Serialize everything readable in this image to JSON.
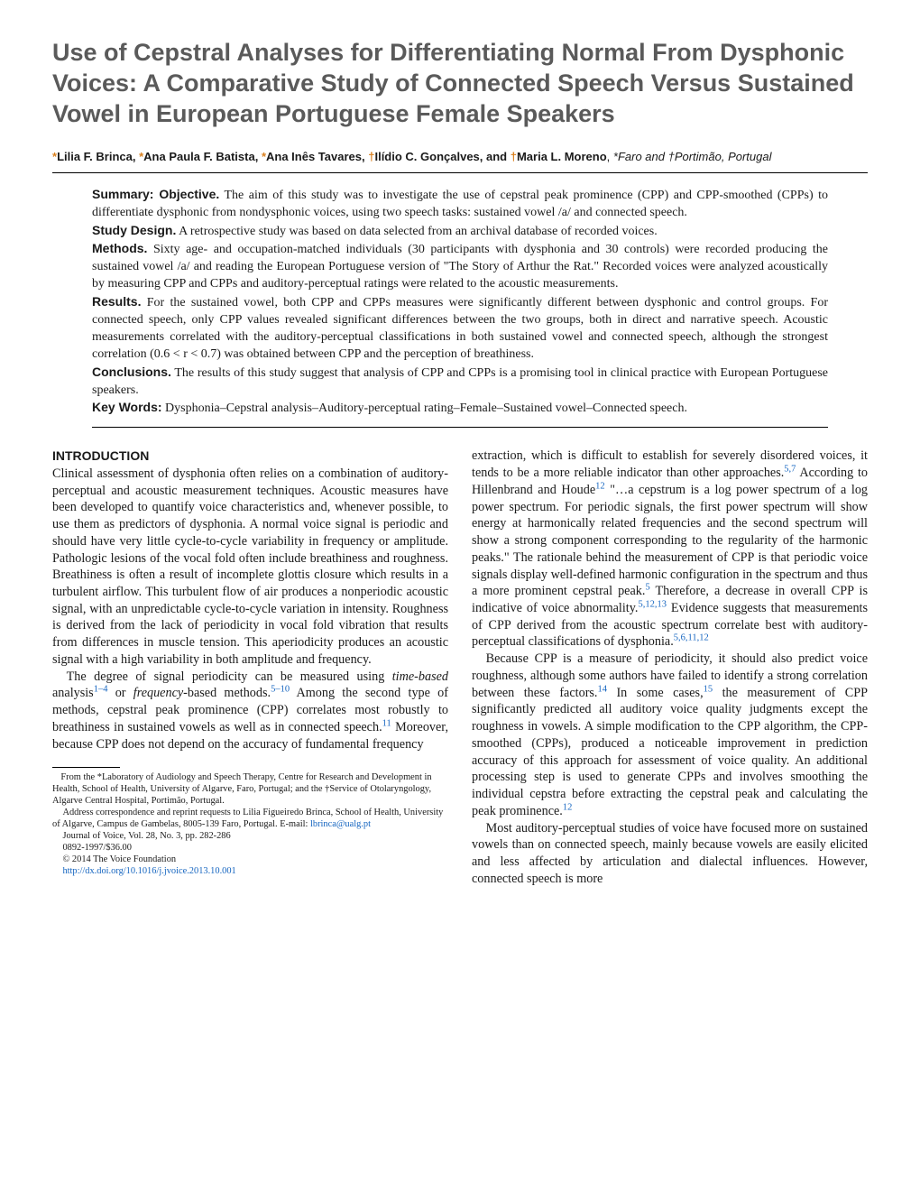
{
  "title": "Use of Cepstral Analyses for Differentiating Normal From Dysphonic Voices: A Comparative Study of Connected Speech Versus Sustained Vowel in European Portuguese Female Speakers",
  "authors": {
    "list": [
      {
        "mark": "*",
        "name": "Lilia F. Brinca"
      },
      {
        "mark": "*",
        "name": "Ana Paula F. Batista"
      },
      {
        "mark": "*",
        "name": "Ana Inês Tavares"
      },
      {
        "mark": "†",
        "name": "Ilídio C. Gonçalves"
      },
      {
        "mark": "†",
        "name": "Maria L. Moreno"
      }
    ],
    "affiliations": "*Faro and †Portimão, Portugal"
  },
  "abstract": {
    "objective_label": "Summary: Objective.",
    "objective": " The aim of this study was to investigate the use of cepstral peak prominence (CPP) and CPP-smoothed (CPPs) to differentiate dysphonic from nondysphonic voices, using two speech tasks: sustained vowel /a/ and connected speech.",
    "design_label": "Study Design.",
    "design": " A retrospective study was based on data selected from an archival database of recorded voices.",
    "methods_label": "Methods.",
    "methods": " Sixty age- and occupation-matched individuals (30 participants with dysphonia and 30 controls) were recorded producing the sustained vowel /a/ and reading the European Portuguese version of \"The Story of Arthur the Rat.\" Recorded voices were analyzed acoustically by measuring CPP and CPPs and auditory-perceptual ratings were related to the acoustic measurements.",
    "results_label": "Results.",
    "results": " For the sustained vowel, both CPP and CPPs measures were significantly different between dysphonic and control groups. For connected speech, only CPP values revealed significant differences between the two groups, both in direct and narrative speech. Acoustic measurements correlated with the auditory-perceptual classifications in both sustained vowel and connected speech, although the strongest correlation (0.6 < r < 0.7) was obtained between CPP and the perception of breathiness.",
    "conclusions_label": "Conclusions.",
    "conclusions": " The results of this study suggest that analysis of CPP and CPPs is a promising tool in clinical practice with European Portuguese speakers.",
    "keywords_label": "Key Words:",
    "keywords": " Dysphonia–Cepstral analysis–Auditory-perceptual rating–Female–Sustained vowel–Connected speech."
  },
  "intro_heading": "INTRODUCTION",
  "col1": {
    "p1": "Clinical assessment of dysphonia often relies on a combination of auditory-perceptual and acoustic measurement techniques. Acoustic measures have been developed to quantify voice characteristics and, whenever possible, to use them as predictors of dysphonia. A normal voice signal is periodic and should have very little cycle-to-cycle variability in frequency or amplitude. Pathologic lesions of the vocal fold often include breathiness and roughness. Breathiness is often a result of incomplete glottis closure which results in a turbulent airflow. This turbulent flow of air produces a nonperiodic acoustic signal, with an unpredictable cycle-to-cycle variation in intensity. Roughness is derived from the lack of periodicity in vocal fold vibration that results from differences in muscle tension. This aperiodicity produces an acoustic signal with a high variability in both amplitude and frequency.",
    "p2a": "The degree of signal periodicity can be measured using ",
    "p2_time": "time-based",
    "p2b": " analysis",
    "p2_ref1": "1–4",
    "p2c": " or ",
    "p2_freq": "frequency",
    "p2d": "-based methods.",
    "p2_ref2": "5–10",
    "p2e": " Among the second type of methods, cepstral peak prominence (CPP) correlates most robustly to breathiness in sustained vowels as well as in connected speech.",
    "p2_ref3": "11",
    "p2f": " Moreover, because CPP does not depend on the accuracy of fundamental frequency"
  },
  "col2": {
    "p1a": "extraction, which is difficult to establish for severely disordered voices, it tends to be a more reliable indicator than other approaches.",
    "p1_ref1": "5,7",
    "p1b": " According to Hillenbrand and Houde",
    "p1_ref2": "12",
    "p1c": " \"…a cepstrum is a log power spectrum of a log power spectrum. For periodic signals, the first power spectrum will show energy at harmonically related frequencies and the second spectrum will show a strong component corresponding to the regularity of the harmonic peaks.\" The rationale behind the measurement of CPP is that periodic voice signals display well-defined harmonic configuration in the spectrum and thus a more prominent cepstral peak.",
    "p1_ref3": "5",
    "p1d": " Therefore, a decrease in overall CPP is indicative of voice abnormality.",
    "p1_ref4": "5,12,13",
    "p1e": " Evidence suggests that measurements of CPP derived from the acoustic spectrum correlate best with auditory-perceptual classifications of dysphonia.",
    "p1_ref5": "5,6,11,12",
    "p2a": "Because CPP is a measure of periodicity, it should also predict voice roughness, although some authors have failed to identify a strong correlation between these factors.",
    "p2_ref1": "14",
    "p2b": " In some cases,",
    "p2_ref2": "15",
    "p2c": " the measurement of CPP significantly predicted all auditory voice quality judgments except the roughness in vowels. A simple modification to the CPP algorithm, the CPP-smoothed (CPPs), produced a noticeable improvement in prediction accuracy of this approach for assessment of voice quality. An additional processing step is used to generate CPPs and involves smoothing the individual cepstra before extracting the cepstral peak and calculating the peak prominence.",
    "p2_ref3": "12",
    "p3": "Most auditory-perceptual studies of voice have focused more on sustained vowels than on connected speech, mainly because vowels are easily elicited and less affected by articulation and dialectal influences. However, connected speech is more"
  },
  "footnotes": {
    "from": "From the *Laboratory of Audiology and Speech Therapy, Centre for Research and Development in Health, School of Health, University of Algarve, Faro, Portugal; and the †Service of Otolaryngology, Algarve Central Hospital, Portimão, Portugal.",
    "corr": "Address correspondence and reprint requests to Lilia Figueiredo Brinca, School of Health, University of Algarve, Campus de Gambelas, 8005-139 Faro, Portugal. E-mail: ",
    "email": "lbrinca@ualg.pt",
    "journal": "Journal of Voice, Vol. 28, No. 3, pp. 282-286",
    "issn": "0892-1997/$36.00",
    "copyright": "© 2014 The Voice Foundation",
    "doi": "http://dx.doi.org/10.1016/j.jvoice.2013.10.001"
  }
}
